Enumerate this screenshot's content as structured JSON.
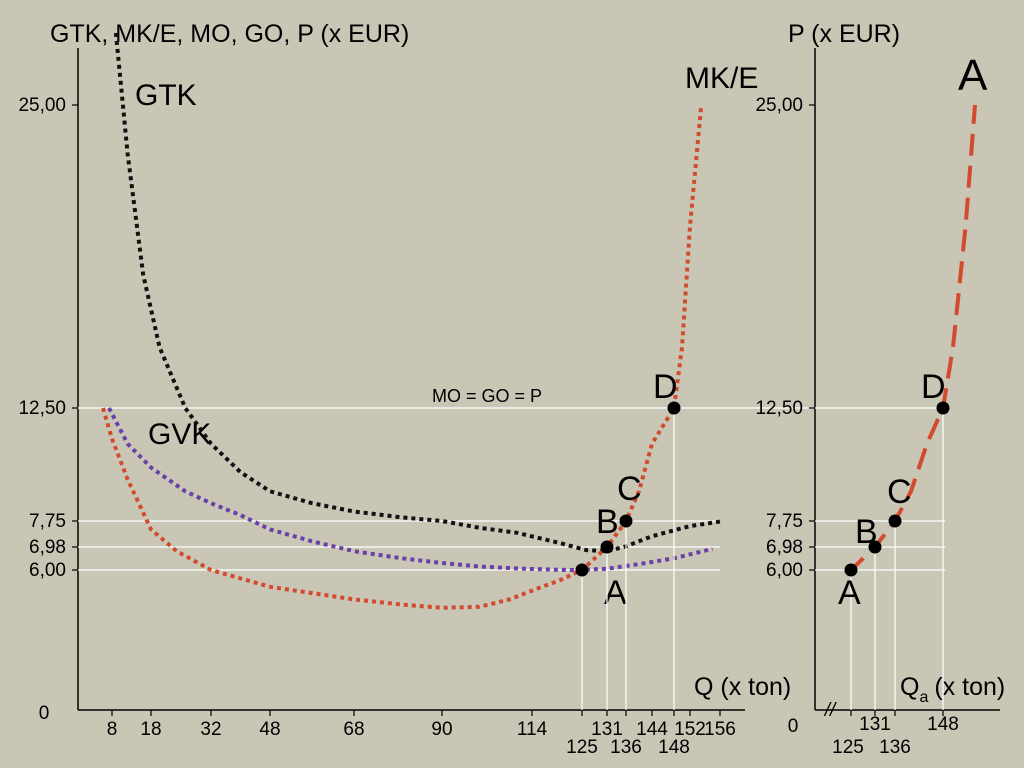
{
  "chart_data": [
    {
      "type": "line",
      "y_axis_title": "GTK, MK/E, MO, GO, P (x EUR)",
      "x_axis_title": "Q (x ton)",
      "origin_label": "0",
      "y_ticks": [
        {
          "value": 25.0,
          "label": "25,00"
        },
        {
          "value": 12.5,
          "label": "12,50"
        },
        {
          "value": 7.75,
          "label": "7,75"
        },
        {
          "value": 6.98,
          "label": "6,98"
        },
        {
          "value": 6.0,
          "label": "6,00"
        }
      ],
      "x_ticks_row1": [
        {
          "value": 8,
          "label": "8"
        },
        {
          "value": 18,
          "label": "18"
        },
        {
          "value": 32,
          "label": "32"
        },
        {
          "value": 48,
          "label": "48"
        },
        {
          "value": 68,
          "label": "68"
        },
        {
          "value": 90,
          "label": "90"
        },
        {
          "value": 114,
          "label": "114"
        },
        {
          "value": 131,
          "label": "131"
        },
        {
          "value": 144,
          "label": "144"
        },
        {
          "value": 152,
          "label": "152"
        },
        {
          "value": 156,
          "label": "156"
        }
      ],
      "x_ticks_row2": [
        {
          "value": 125,
          "label": "125"
        },
        {
          "value": 136,
          "label": "136"
        },
        {
          "value": 148,
          "label": "148"
        }
      ],
      "series": [
        {
          "name": "GTK",
          "color": "#111111",
          "style": "dotted",
          "points": [
            [
              9,
              28
            ],
            [
              12,
              23
            ],
            [
              16,
              18
            ],
            [
              20,
              15
            ],
            [
              26,
              12.5
            ],
            [
              32,
              11
            ],
            [
              40,
              9.8
            ],
            [
              48,
              9
            ],
            [
              58,
              8.5
            ],
            [
              68,
              8.15
            ],
            [
              80,
              7.9
            ],
            [
              90,
              7.75
            ],
            [
              100,
              7.55
            ],
            [
              110,
              7.4
            ],
            [
              120,
              7.1
            ],
            [
              126,
              6.85
            ],
            [
              131,
              6.8
            ],
            [
              136,
              7.0
            ],
            [
              144,
              7.3
            ],
            [
              152,
              7.6
            ],
            [
              157,
              7.75
            ]
          ]
        },
        {
          "name": "GVK",
          "color": "#6a3fa8",
          "style": "dotted",
          "points": [
            [
              7,
              12.5
            ],
            [
              12,
              11
            ],
            [
              18,
              10
            ],
            [
              26,
              9
            ],
            [
              32,
              8.5
            ],
            [
              40,
              8
            ],
            [
              48,
              7.5
            ],
            [
              58,
              7.15
            ],
            [
              68,
              6.8
            ],
            [
              80,
              6.5
            ],
            [
              90,
              6.3
            ],
            [
              100,
              6.15
            ],
            [
              112,
              6.05
            ],
            [
              122,
              6.0
            ],
            [
              131,
              6.05
            ],
            [
              140,
              6.25
            ],
            [
              148,
              6.5
            ],
            [
              155,
              6.9
            ]
          ]
        },
        {
          "name": "MK/E",
          "color": "#d24b2e",
          "style": "dotted",
          "points": [
            [
              5,
              12.5
            ],
            [
              8,
              11.2
            ],
            [
              12,
              9.5
            ],
            [
              18,
              7.5
            ],
            [
              24,
              6.8
            ],
            [
              32,
              6.0
            ],
            [
              40,
              5.6
            ],
            [
              48,
              5.2
            ],
            [
              58,
              4.9
            ],
            [
              68,
              4.6
            ],
            [
              80,
              4.35
            ],
            [
              90,
              4.2
            ],
            [
              100,
              4.25
            ],
            [
              108,
              4.6
            ],
            [
              115,
              5.1
            ],
            [
              120,
              5.5
            ],
            [
              125,
              6.0
            ],
            [
              131,
              6.98
            ],
            [
              136,
              7.75
            ],
            [
              140,
              9.0
            ],
            [
              144,
              11.0
            ],
            [
              148,
              12.5
            ],
            [
              150,
              15.0
            ],
            [
              152,
              20.0
            ],
            [
              153.5,
              25.0
            ]
          ]
        }
      ],
      "reference_line": {
        "value": 12.5,
        "label": "MO = GO = P"
      },
      "points": [
        {
          "label": "A",
          "q": 125,
          "p": 6.0
        },
        {
          "label": "B",
          "q": 131,
          "p": 6.98
        },
        {
          "label": "C",
          "q": 136,
          "p": 7.75
        },
        {
          "label": "D",
          "q": 148,
          "p": 12.5
        }
      ],
      "curve_labels": {
        "gtk": "GTK",
        "gvk": "GVK",
        "mke": "MK/E"
      }
    },
    {
      "type": "line",
      "y_axis_title": "P (x EUR)",
      "x_axis_title_main": "Q",
      "x_axis_title_sub": "a",
      "x_axis_title_rest": "(x ton)",
      "origin_label": "0",
      "axis_break_mark": "//",
      "big_label": "A",
      "y_ticks": [
        {
          "value": 25.0,
          "label": "25,00"
        },
        {
          "value": 12.5,
          "label": "12,50"
        },
        {
          "value": 7.75,
          "label": "7,75"
        },
        {
          "value": 6.98,
          "label": "6,98"
        },
        {
          "value": 6.0,
          "label": "6,00"
        }
      ],
      "x_ticks_row1": [
        {
          "value": 131,
          "label": "131"
        },
        {
          "value": 148,
          "label": "148"
        }
      ],
      "x_ticks_row2": [
        {
          "value": 125,
          "label": "125"
        },
        {
          "value": 136,
          "label": "136"
        }
      ],
      "series": [
        {
          "name": "",
          "color": "#d24b2e",
          "style": "dashed",
          "points": [
            [
              124,
              5.8
            ],
            [
              125,
              6.0
            ],
            [
              131,
              6.98
            ],
            [
              136,
              7.75
            ],
            [
              140,
              9.0
            ],
            [
              144,
              11.0
            ],
            [
              148,
              12.5
            ],
            [
              150,
              15.0
            ],
            [
              152,
              20.0
            ],
            [
              153.5,
              25.0
            ]
          ]
        }
      ],
      "points": [
        {
          "label": "A",
          "q": 125,
          "p": 6.0
        },
        {
          "label": "B",
          "q": 131,
          "p": 6.98
        },
        {
          "label": "C",
          "q": 136,
          "p": 7.75
        },
        {
          "label": "D",
          "q": 148,
          "p": 12.5
        }
      ]
    }
  ]
}
